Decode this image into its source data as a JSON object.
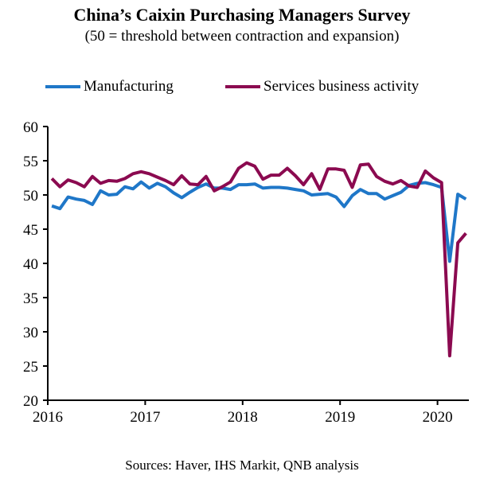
{
  "chart_data": {
    "type": "line",
    "title": "China’s Caixin Purchasing Managers Survey",
    "subtitle": "(50 = threshold between contraction and expansion)",
    "xlabel": "",
    "ylabel": "",
    "ylim": [
      20,
      60
    ],
    "yticks": [
      "60",
      "55",
      "50",
      "45",
      "40",
      "35",
      "30",
      "25",
      "20"
    ],
    "ytick_values": [
      60,
      55,
      50,
      45,
      40,
      35,
      30,
      25,
      20
    ],
    "xticks": [
      "2016",
      "2017",
      "2018",
      "2019",
      "2020"
    ],
    "x_start": "2016-01",
    "x_frequency": "monthly",
    "grid": false,
    "legend_position": "top",
    "series": [
      {
        "name": "Manufacturing",
        "color": "#1F77C8",
        "values": [
          48.4,
          48.0,
          49.7,
          49.4,
          49.2,
          48.6,
          50.6,
          50.0,
          50.1,
          51.2,
          50.9,
          51.9,
          51.0,
          51.7,
          51.2,
          50.3,
          49.6,
          50.4,
          51.1,
          51.6,
          51.0,
          51.0,
          50.8,
          51.5,
          51.5,
          51.6,
          51.0,
          51.1,
          51.1,
          51.0,
          50.8,
          50.6,
          50.0,
          50.1,
          50.2,
          49.7,
          48.3,
          49.9,
          50.8,
          50.2,
          50.2,
          49.4,
          49.9,
          50.4,
          51.4,
          51.7,
          51.8,
          51.5,
          51.1,
          40.3,
          50.1,
          49.4
        ]
      },
      {
        "name": "Services business activity",
        "color": "#8B0A50",
        "values": [
          52.4,
          51.2,
          52.2,
          51.8,
          51.2,
          52.7,
          51.7,
          52.1,
          52.0,
          52.4,
          53.1,
          53.4,
          53.1,
          52.6,
          52.1,
          51.5,
          52.8,
          51.6,
          51.5,
          52.7,
          50.6,
          51.2,
          51.9,
          53.9,
          54.7,
          54.2,
          52.3,
          52.9,
          52.9,
          53.9,
          52.8,
          51.5,
          53.1,
          50.8,
          53.8,
          53.8,
          53.6,
          51.1,
          54.4,
          54.5,
          52.7,
          52.0,
          51.6,
          52.1,
          51.3,
          51.1,
          53.5,
          52.5,
          51.8,
          26.5,
          43.0,
          44.4
        ]
      }
    ]
  },
  "source": "Sources: Haver, IHS Markit, QNB analysis"
}
